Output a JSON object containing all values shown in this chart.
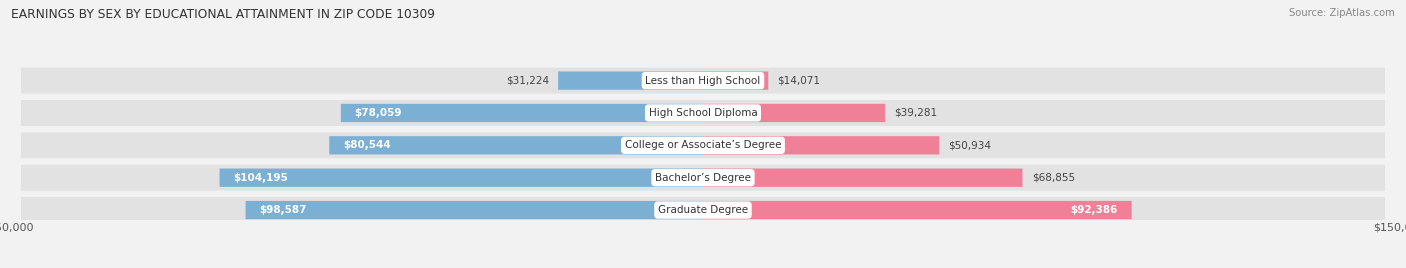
{
  "title": "EARNINGS BY SEX BY EDUCATIONAL ATTAINMENT IN ZIP CODE 10309",
  "source": "Source: ZipAtlas.com",
  "categories": [
    "Less than High School",
    "High School Diploma",
    "College or Associate’s Degree",
    "Bachelor’s Degree",
    "Graduate Degree"
  ],
  "male_values": [
    31224,
    78059,
    80544,
    104195,
    98587
  ],
  "female_values": [
    14071,
    39281,
    50934,
    68855,
    92386
  ],
  "male_color": "#7bafd4",
  "female_color": "#f08098",
  "max_val": 150000,
  "bg_color": "#f2f2f2",
  "row_bg": "#e2e2e2",
  "white": "#ffffff"
}
